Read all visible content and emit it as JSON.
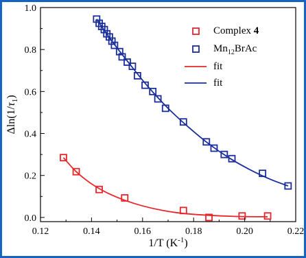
{
  "chart_data": {
    "type": "scatter",
    "xlabel": "1/T (K",
    "xlabel_sup": "-1",
    "xlabel_end": ")",
    "ylabel_prefix": "Δln(1/",
    "ylabel_tau": "τ",
    "ylabel_sub": "1",
    "ylabel_end": ")",
    "xlim": [
      0.12,
      0.22
    ],
    "ylim": [
      -0.02,
      1.0
    ],
    "xticks": [
      0.12,
      0.14,
      0.16,
      0.18,
      0.2,
      0.22
    ],
    "xtick_labels": [
      "0.12",
      "0.14",
      "0.16",
      "0.18",
      "0.20",
      "0.22"
    ],
    "yticks": [
      0.0,
      0.2,
      0.4,
      0.6,
      0.8,
      1.0
    ],
    "ytick_labels": [
      "0.0",
      "0.2",
      "0.4",
      "0.6",
      "0.8",
      "1.0"
    ],
    "legend_position": "top-right",
    "series": [
      {
        "name": "Complex ",
        "name_bold": "4",
        "kind": "points",
        "marker": "open-square",
        "color": "#e8262a",
        "x": [
          0.129,
          0.134,
          0.143,
          0.153,
          0.176,
          0.186,
          0.199,
          0.209
        ],
        "y": [
          0.285,
          0.218,
          0.133,
          0.093,
          0.033,
          0.0,
          0.007,
          0.007
        ]
      },
      {
        "name": "Mn",
        "name_sub": "12",
        "name_end": "BrAc",
        "kind": "points",
        "marker": "open-square",
        "color": "#1a2e9a",
        "x": [
          0.142,
          0.143,
          0.144,
          0.145,
          0.146,
          0.147,
          0.148,
          0.149,
          0.151,
          0.152,
          0.154,
          0.156,
          0.158,
          0.161,
          0.164,
          0.166,
          0.169,
          0.176,
          0.185,
          0.188,
          0.192,
          0.195,
          0.207,
          0.217
        ],
        "y": [
          0.945,
          0.925,
          0.91,
          0.895,
          0.875,
          0.86,
          0.84,
          0.82,
          0.79,
          0.765,
          0.74,
          0.72,
          0.675,
          0.63,
          0.6,
          0.565,
          0.52,
          0.455,
          0.36,
          0.33,
          0.3,
          0.28,
          0.21,
          0.15
        ]
      },
      {
        "name": "fit",
        "kind": "line",
        "color": "#e8262a",
        "x": [
          0.129,
          0.134,
          0.14,
          0.146,
          0.153,
          0.16,
          0.168,
          0.176,
          0.186,
          0.196,
          0.209
        ],
        "y": [
          0.285,
          0.218,
          0.16,
          0.118,
          0.082,
          0.055,
          0.033,
          0.019,
          0.01,
          0.005,
          0.003
        ]
      },
      {
        "name": "fit",
        "kind": "line",
        "color": "#1a2e9a",
        "x": [
          0.142,
          0.148,
          0.155,
          0.162,
          0.17,
          0.178,
          0.186,
          0.194,
          0.202,
          0.21,
          0.217
        ],
        "y": [
          0.945,
          0.84,
          0.73,
          0.625,
          0.52,
          0.43,
          0.35,
          0.283,
          0.228,
          0.182,
          0.15
        ]
      }
    ]
  }
}
